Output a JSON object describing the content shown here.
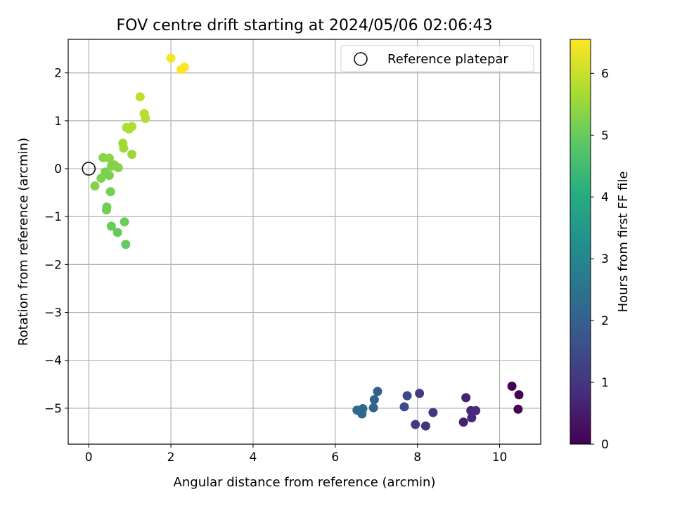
{
  "chart_data": {
    "type": "scatter",
    "title": "FOV centre drift starting at 2024/05/06 02:06:43",
    "xlabel": "Angular distance from reference (arcmin)",
    "ylabel": "Rotation from reference (arcmin)",
    "xlim": [
      -0.5,
      11.0
    ],
    "ylim": [
      -5.75,
      2.7
    ],
    "xticks": [
      0,
      2,
      4,
      6,
      8,
      10
    ],
    "yticks": [
      -5,
      -4,
      -3,
      -2,
      -1,
      0,
      1,
      2
    ],
    "xtick_labels": [
      "0",
      "2",
      "4",
      "6",
      "8",
      "10"
    ],
    "ytick_labels": [
      "−5",
      "−4",
      "−3",
      "−2",
      "−1",
      "0",
      "1",
      "2"
    ],
    "grid": true,
    "legend": {
      "location": "top-right",
      "entries": [
        {
          "label": "Reference platepar",
          "marker": "open-circle",
          "x": 0,
          "y": 0
        }
      ]
    },
    "colorbar": {
      "label": "Hours from first FF file",
      "colormap": "viridis",
      "range": [
        0,
        6.55
      ],
      "ticks": [
        0,
        1,
        2,
        3,
        4,
        5,
        6
      ],
      "tick_labels": [
        "0",
        "1",
        "2",
        "3",
        "4",
        "5",
        "6"
      ]
    },
    "points": [
      {
        "x": 10.3,
        "y": -4.54,
        "c": 0.02
      },
      {
        "x": 10.47,
        "y": -4.72,
        "c": 0.05
      },
      {
        "x": 10.45,
        "y": -5.02,
        "c": 0.08
      },
      {
        "x": 9.12,
        "y": -5.29,
        "c": 0.55
      },
      {
        "x": 9.18,
        "y": -4.78,
        "c": 0.62
      },
      {
        "x": 9.3,
        "y": -5.05,
        "c": 0.7
      },
      {
        "x": 9.32,
        "y": -5.2,
        "c": 0.75
      },
      {
        "x": 9.42,
        "y": -5.05,
        "c": 0.78
      },
      {
        "x": 8.2,
        "y": -5.37,
        "c": 1.0
      },
      {
        "x": 8.38,
        "y": -5.09,
        "c": 1.05
      },
      {
        "x": 7.95,
        "y": -5.34,
        "c": 1.1
      },
      {
        "x": 8.05,
        "y": -4.69,
        "c": 1.15
      },
      {
        "x": 7.75,
        "y": -4.74,
        "c": 1.45
      },
      {
        "x": 7.68,
        "y": -4.97,
        "c": 1.5
      },
      {
        "x": 7.03,
        "y": -4.65,
        "c": 1.95
      },
      {
        "x": 6.95,
        "y": -4.82,
        "c": 2.05
      },
      {
        "x": 6.93,
        "y": -4.99,
        "c": 2.1
      },
      {
        "x": 6.67,
        "y": -5.01,
        "c": 2.15
      },
      {
        "x": 6.65,
        "y": -5.12,
        "c": 2.2
      },
      {
        "x": 6.53,
        "y": -5.04,
        "c": 2.25
      },
      {
        "x": 0.9,
        "y": -1.58,
        "c": 4.95
      },
      {
        "x": 0.7,
        "y": -1.33,
        "c": 5.0
      },
      {
        "x": 0.55,
        "y": -1.2,
        "c": 5.02
      },
      {
        "x": 0.87,
        "y": -1.11,
        "c": 5.05
      },
      {
        "x": 0.43,
        "y": -0.86,
        "c": 5.1
      },
      {
        "x": 0.44,
        "y": -0.8,
        "c": 5.12
      },
      {
        "x": 0.53,
        "y": -0.48,
        "c": 5.15
      },
      {
        "x": 0.15,
        "y": -0.36,
        "c": 5.3
      },
      {
        "x": 0.3,
        "y": -0.2,
        "c": 5.25
      },
      {
        "x": 0.4,
        "y": -0.07,
        "c": 5.2
      },
      {
        "x": 0.5,
        "y": -0.14,
        "c": 5.22
      },
      {
        "x": 0.72,
        "y": 0.02,
        "c": 5.35
      },
      {
        "x": 0.55,
        "y": 0.05,
        "c": 5.3
      },
      {
        "x": 0.62,
        "y": 0.08,
        "c": 5.32
      },
      {
        "x": 0.35,
        "y": 0.23,
        "c": 5.35
      },
      {
        "x": 0.5,
        "y": 0.22,
        "c": 5.38
      },
      {
        "x": 1.05,
        "y": 0.3,
        "c": 5.55
      },
      {
        "x": 0.85,
        "y": 0.43,
        "c": 5.6
      },
      {
        "x": 0.83,
        "y": 0.53,
        "c": 5.62
      },
      {
        "x": 0.92,
        "y": 0.86,
        "c": 5.72
      },
      {
        "x": 0.98,
        "y": 0.83,
        "c": 5.75
      },
      {
        "x": 1.05,
        "y": 0.88,
        "c": 5.78
      },
      {
        "x": 1.38,
        "y": 1.05,
        "c": 5.8
      },
      {
        "x": 1.35,
        "y": 1.15,
        "c": 5.85
      },
      {
        "x": 1.25,
        "y": 1.5,
        "c": 5.88
      },
      {
        "x": 2.0,
        "y": 2.31,
        "c": 6.45
      },
      {
        "x": 2.25,
        "y": 2.07,
        "c": 6.5
      },
      {
        "x": 2.33,
        "y": 2.12,
        "c": 6.55
      }
    ]
  }
}
